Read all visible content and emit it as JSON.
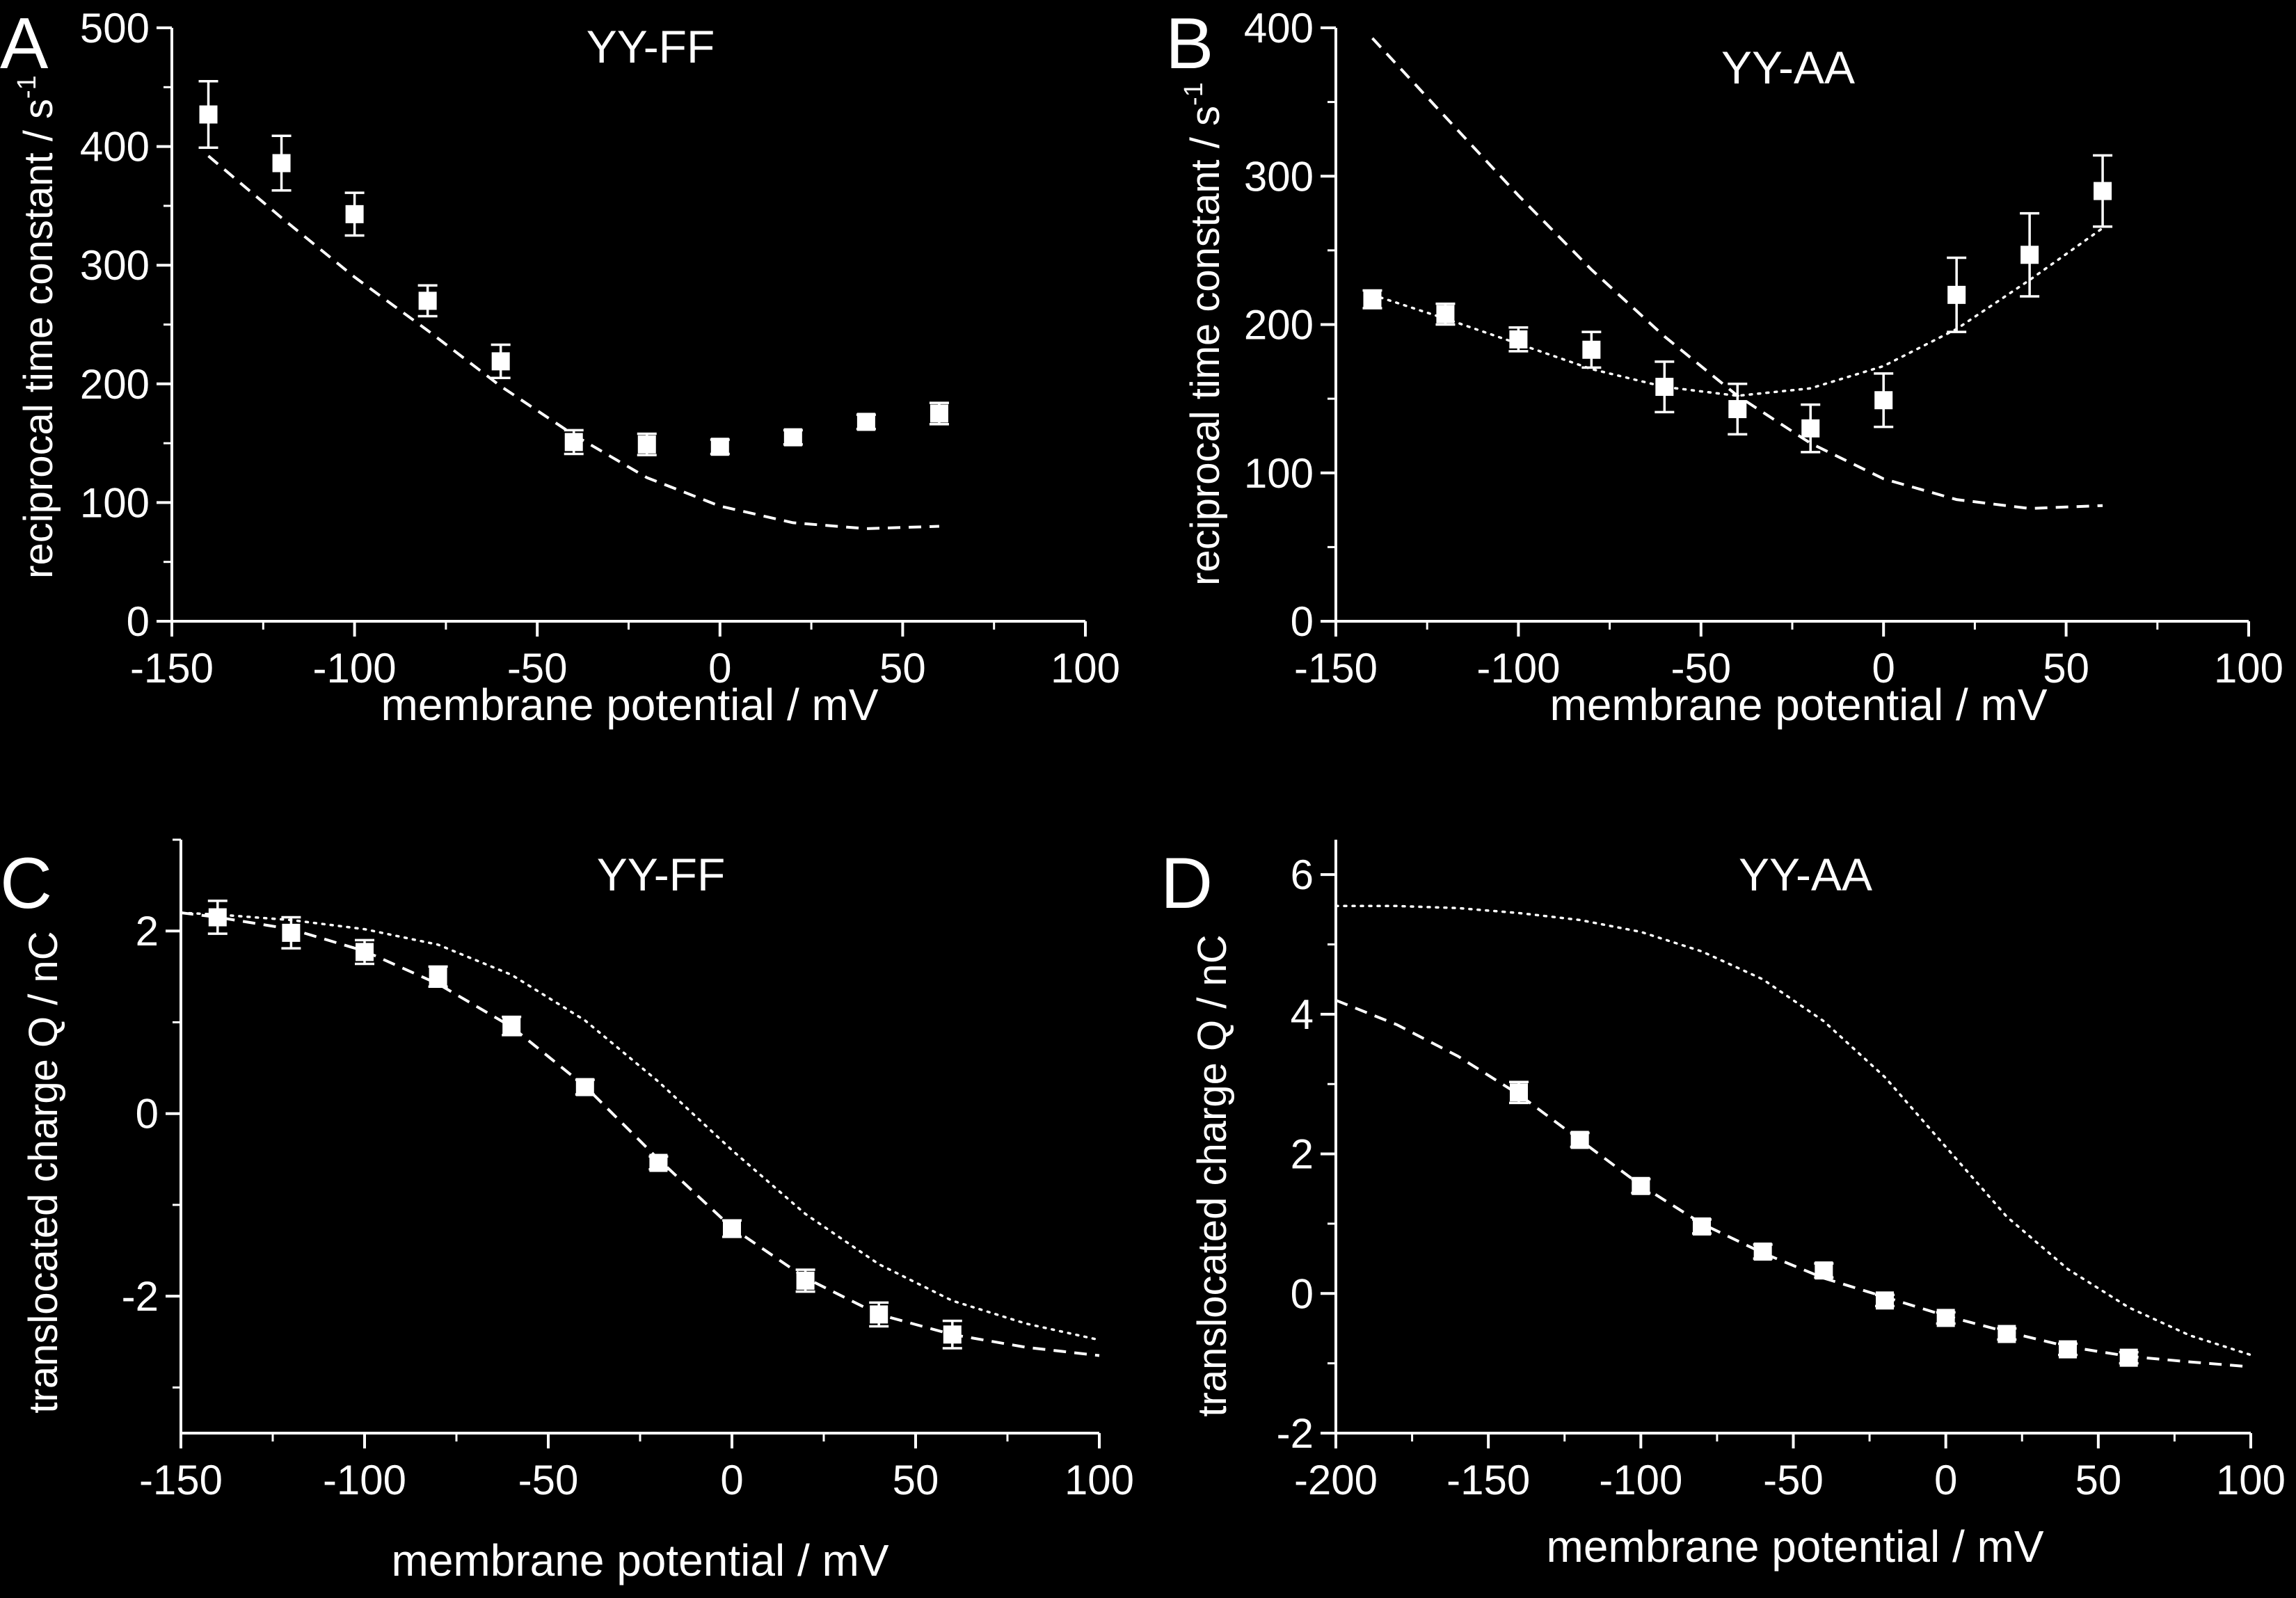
{
  "figure": {
    "background": "#000000",
    "foreground": "#ffffff"
  },
  "chart_data": [
    {
      "panel": "A",
      "type": "scatter",
      "title": "YY-FF",
      "xlabel": "membrane potential / mV",
      "ylabel": "reciprocal time constant / s",
      "ylabel_sup": "-1",
      "xlim": [
        -150,
        100
      ],
      "ylim": [
        0,
        500
      ],
      "xticks": [
        -150,
        -100,
        -50,
        0,
        50,
        100
      ],
      "yticks": [
        0,
        100,
        200,
        300,
        400,
        500
      ],
      "series": [
        {
          "style": "markers",
          "x": [
            -140,
            -120,
            -100,
            -80,
            -60,
            -40,
            -20,
            0,
            20,
            40,
            60
          ],
          "y": [
            427,
            386,
            343,
            270,
            219,
            151,
            149,
            147,
            155,
            168,
            175
          ],
          "err": [
            28,
            23,
            18,
            13,
            14,
            10,
            9,
            6,
            6,
            6,
            9
          ]
        },
        {
          "style": "dashed",
          "x": [
            -140,
            -120,
            -100,
            -80,
            -60,
            -40,
            -20,
            0,
            20,
            40,
            60
          ],
          "y": [
            392,
            340,
            290,
            245,
            198,
            157,
            121,
            97,
            83,
            78,
            80
          ]
        }
      ]
    },
    {
      "panel": "B",
      "type": "scatter",
      "title": "YY-AA",
      "xlabel": "membrane potential / mV",
      "ylabel": "reciprocal time constant / s",
      "ylabel_sup": "-1",
      "xlim": [
        -150,
        100
      ],
      "ylim": [
        0,
        400
      ],
      "xticks": [
        -150,
        -100,
        -50,
        0,
        50,
        100
      ],
      "yticks": [
        0,
        100,
        200,
        300,
        400
      ],
      "series": [
        {
          "style": "markers",
          "x": [
            -140,
            -120,
            -100,
            -80,
            -60,
            -40,
            -20,
            0,
            20,
            40,
            60
          ],
          "y": [
            217,
            207,
            190,
            183,
            158,
            143,
            130,
            149,
            220,
            247,
            290
          ],
          "err": [
            6,
            7,
            8,
            12,
            17,
            17,
            16,
            18,
            25,
            28,
            24
          ]
        },
        {
          "style": "dashed",
          "x": [
            -140,
            -120,
            -100,
            -80,
            -60,
            -40,
            -20,
            0,
            20,
            40,
            60
          ],
          "y": [
            393,
            340,
            287,
            237,
            192,
            152,
            120,
            96,
            82,
            76,
            78
          ]
        },
        {
          "style": "dotted",
          "x": [
            -140,
            -120,
            -100,
            -80,
            -60,
            -40,
            -20,
            0,
            20,
            40,
            60
          ],
          "y": [
            220,
            204,
            187,
            170,
            158,
            152,
            157,
            172,
            197,
            230,
            265
          ]
        }
      ]
    },
    {
      "panel": "C",
      "type": "scatter",
      "title": "YY-FF",
      "xlabel": "membrane potential / mV",
      "ylabel": "translocated charge Q / nC",
      "xlim": [
        -150,
        100
      ],
      "ylim": [
        -3.5,
        3
      ],
      "xticks": [
        -150,
        -100,
        -50,
        0,
        50,
        100
      ],
      "yticks": [
        -2,
        0,
        2
      ],
      "series": [
        {
          "style": "markers",
          "x": [
            -140,
            -120,
            -100,
            -80,
            -60,
            -40,
            -20,
            0,
            20,
            40,
            60
          ],
          "y": [
            2.15,
            1.98,
            1.77,
            1.5,
            0.96,
            0.29,
            -0.54,
            -1.26,
            -1.83,
            -2.2,
            -2.42
          ],
          "err": [
            0.18,
            0.17,
            0.13,
            0.11,
            0.1,
            0.08,
            0.07,
            0.09,
            0.12,
            0.13,
            0.15
          ]
        },
        {
          "style": "dashed",
          "x": [
            -150,
            -140,
            -120,
            -100,
            -80,
            -60,
            -40,
            -20,
            0,
            20,
            40,
            60,
            80,
            100
          ],
          "y": [
            2.2,
            2.15,
            2.02,
            1.78,
            1.42,
            0.95,
            0.3,
            -0.5,
            -1.25,
            -1.8,
            -2.2,
            -2.42,
            -2.56,
            -2.65
          ]
        },
        {
          "style": "dotted",
          "x": [
            -150,
            -140,
            -120,
            -100,
            -80,
            -60,
            -40,
            -20,
            0,
            20,
            40,
            60,
            80,
            100
          ],
          "y": [
            2.2,
            2.18,
            2.12,
            2.02,
            1.85,
            1.52,
            1.02,
            0.35,
            -0.4,
            -1.1,
            -1.65,
            -2.05,
            -2.3,
            -2.48
          ]
        }
      ]
    },
    {
      "panel": "D",
      "type": "scatter",
      "title": "YY-AA",
      "xlabel": "membrane potential / mV",
      "ylabel": "translocated charge Q / nC",
      "xlim": [
        -200,
        100
      ],
      "ylim": [
        -2,
        6.5
      ],
      "xticks": [
        -200,
        -150,
        -100,
        -50,
        0,
        50,
        100
      ],
      "yticks": [
        -2,
        0,
        2,
        4,
        6
      ],
      "series": [
        {
          "style": "markers",
          "x": [
            -140,
            -120,
            -100,
            -80,
            -60,
            -40,
            -20,
            0,
            20,
            40,
            60
          ],
          "y": [
            2.88,
            2.2,
            1.54,
            0.96,
            0.6,
            0.33,
            -0.1,
            -0.35,
            -0.58,
            -0.8,
            -0.92
          ],
          "err": [
            0.15,
            0.1,
            0.1,
            0.1,
            0.1,
            0.1,
            0.08,
            0.08,
            0.08,
            0.08,
            0.08
          ]
        },
        {
          "style": "dashed",
          "x": [
            -200,
            -180,
            -160,
            -140,
            -120,
            -100,
            -80,
            -60,
            -40,
            -20,
            0,
            20,
            40,
            60,
            80,
            100
          ],
          "y": [
            4.2,
            3.85,
            3.4,
            2.85,
            2.2,
            1.55,
            1.0,
            0.58,
            0.22,
            -0.05,
            -0.32,
            -0.55,
            -0.76,
            -0.9,
            -0.98,
            -1.05
          ]
        },
        {
          "style": "dotted",
          "x": [
            -200,
            -180,
            -160,
            -140,
            -120,
            -100,
            -80,
            -60,
            -40,
            -20,
            0,
            20,
            40,
            60,
            80,
            100
          ],
          "y": [
            5.55,
            5.55,
            5.52,
            5.45,
            5.35,
            5.18,
            4.9,
            4.5,
            3.9,
            3.1,
            2.1,
            1.1,
            0.35,
            -0.2,
            -0.6,
            -0.88
          ]
        }
      ]
    }
  ]
}
